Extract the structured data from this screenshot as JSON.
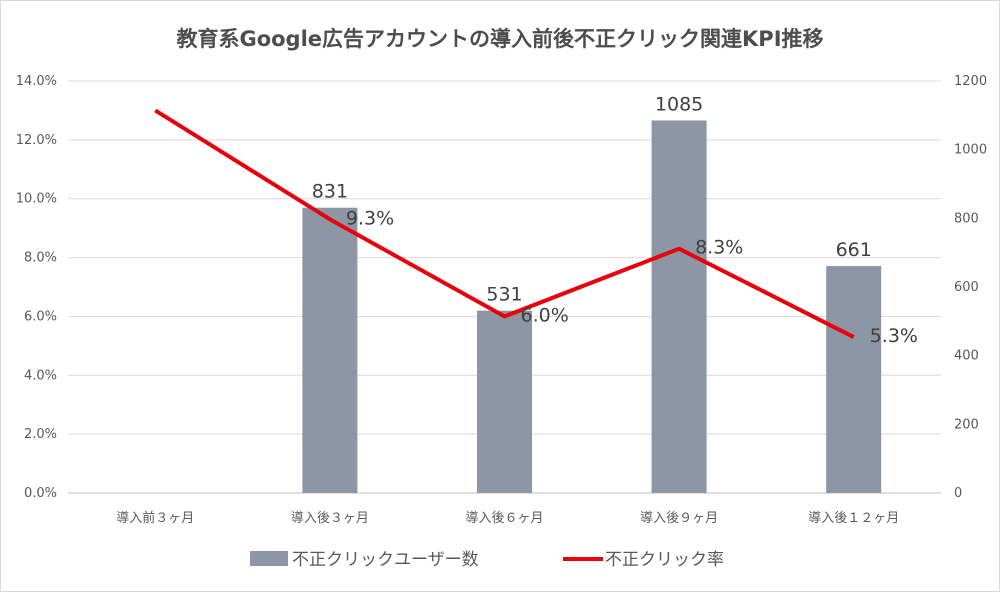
{
  "chart_data": {
    "type": "bar+line",
    "title": "教育系Google広告アカウントの導入前後不正クリック関連KPI推移",
    "categories": [
      "導入前３ヶ月",
      "導入後３ヶ月",
      "導入後６ヶ月",
      "導入後９ヶ月",
      "導入後１２ヶ月"
    ],
    "y_left": {
      "ticks": [
        "0.0%",
        "2.0%",
        "4.0%",
        "6.0%",
        "8.0%",
        "10.0%",
        "12.0%",
        "14.0%"
      ],
      "range": [
        0,
        14
      ]
    },
    "y_right": {
      "ticks": [
        "0",
        "200",
        "400",
        "600",
        "800",
        "1000",
        "1200"
      ],
      "range": [
        0,
        1200
      ]
    },
    "grid": true,
    "legend_position": "bottom",
    "series": [
      {
        "name": "不正クリックユーザー数",
        "kind": "bar",
        "axis": "right",
        "color": "#8c96a4",
        "values": [
          null,
          831,
          531,
          1085,
          661
        ],
        "labels": [
          "",
          "831",
          "531",
          "1085",
          "661"
        ]
      },
      {
        "name": "不正クリック率",
        "kind": "line",
        "axis": "left",
        "color": "#e8000b",
        "values": [
          13.0,
          9.3,
          6.0,
          8.3,
          5.3
        ],
        "labels": [
          "",
          "9.3%",
          "6.0%",
          "8.3%",
          "5.3%"
        ]
      }
    ]
  }
}
